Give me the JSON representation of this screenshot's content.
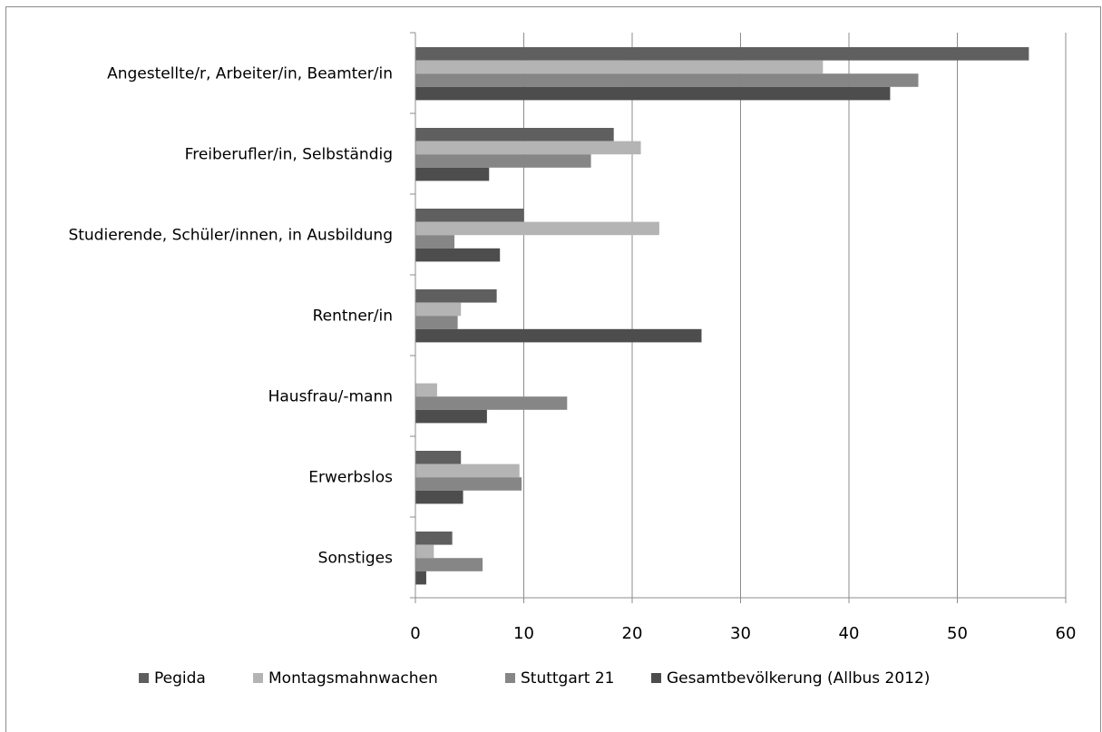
{
  "chart_data": {
    "type": "bar",
    "orientation": "horizontal",
    "title": "",
    "xlabel": "",
    "ylabel": "",
    "xlim": [
      0,
      60
    ],
    "x_ticks": [
      0,
      10,
      20,
      30,
      40,
      50,
      60
    ],
    "grid": "vertical",
    "legend_position": "bottom",
    "categories": [
      "Angestellte/r, Arbeiter/in, Beamter/in",
      "Freiberufler/in, Selbständig",
      "Studierende, Schüler/innen, in Ausbildung",
      "Rentner/in",
      "Hausfrau/-mann",
      "Erwerbslos",
      "Sonstiges"
    ],
    "series": [
      {
        "name": "Pegida",
        "color": "#5f5f5f",
        "values": [
          56.6,
          18.3,
          10.0,
          7.5,
          0.0,
          4.2,
          3.4
        ]
      },
      {
        "name": "Montagsmahnwachen",
        "color": "#b4b4b4",
        "values": [
          37.6,
          20.8,
          22.5,
          4.2,
          2.0,
          9.6,
          1.7
        ]
      },
      {
        "name": "Stuttgart 21",
        "color": "#868686",
        "values": [
          46.4,
          16.2,
          3.6,
          3.9,
          14.0,
          9.8,
          6.2
        ]
      },
      {
        "name": "Gesamtbevölkerung (Allbus 2012)",
        "color": "#4d4d4d",
        "values": [
          43.8,
          6.8,
          7.8,
          26.4,
          6.6,
          4.4,
          1.0
        ]
      }
    ]
  }
}
